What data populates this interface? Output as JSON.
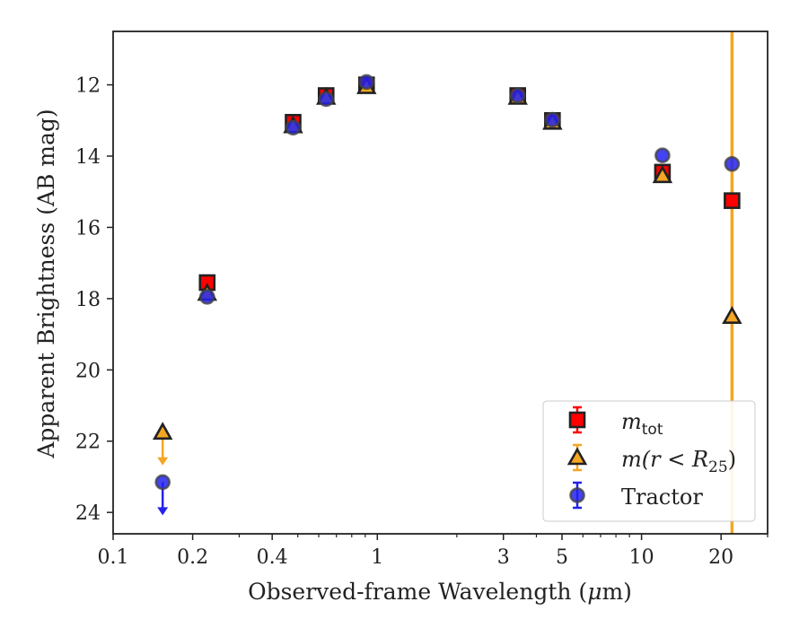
{
  "chart_data": {
    "type": "scatter",
    "xscale": "log",
    "yscale": "linear",
    "xlim": [
      0.1,
      30
    ],
    "ylim": [
      24.6,
      10.5
    ],
    "y_inverted": true,
    "xlabel_main": "Observed-frame Wavelength (",
    "xlabel_mu": "μ",
    "xlabel_end": "m)",
    "ylabel": "Apparent Brightness (AB mag)",
    "x_ticks": [
      {
        "value": 0.1,
        "label": "0.1"
      },
      {
        "value": 0.2,
        "label": "0.2"
      },
      {
        "value": 0.4,
        "label": "0.4"
      },
      {
        "value": 1,
        "label": "1"
      },
      {
        "value": 3,
        "label": "3"
      },
      {
        "value": 5,
        "label": "5"
      },
      {
        "value": 10,
        "label": "10"
      },
      {
        "value": 20,
        "label": "20"
      }
    ],
    "y_ticks": [
      {
        "value": 12,
        "label": "12"
      },
      {
        "value": 14,
        "label": "14"
      },
      {
        "value": 16,
        "label": "16"
      },
      {
        "value": 18,
        "label": "18"
      },
      {
        "value": 20,
        "label": "20"
      },
      {
        "value": 22,
        "label": "22"
      },
      {
        "value": 24,
        "label": "24"
      }
    ],
    "legend_position": "lower-right",
    "vertical_line": {
      "x": 22,
      "color": "#f5a623"
    },
    "series": [
      {
        "key": "mtot",
        "legend_main": "m",
        "legend_sub": "tot",
        "marker": "square",
        "color": "#ff0000",
        "edge": "#222222",
        "errcolor": "#ff0000",
        "points": [
          {
            "x": 0.227,
            "y": 17.55
          },
          {
            "x": 0.48,
            "y": 13.05
          },
          {
            "x": 0.64,
            "y": 12.3
          },
          {
            "x": 0.91,
            "y": 12.0
          },
          {
            "x": 3.4,
            "y": 12.3
          },
          {
            "x": 4.6,
            "y": 13.0
          },
          {
            "x": 12.0,
            "y": 14.45
          },
          {
            "x": 22.0,
            "y": 15.25
          }
        ]
      },
      {
        "key": "mr25",
        "legend_main": "m",
        "legend_paren_open": "(r < R",
        "legend_sub": "25",
        "legend_paren_close": ")",
        "marker": "triangle",
        "color": "#f5a623",
        "edge": "#222222",
        "errcolor": "#f5a623",
        "points": [
          {
            "x": 0.154,
            "y": 21.75,
            "upper_limit": true
          },
          {
            "x": 0.227,
            "y": 17.85
          },
          {
            "x": 0.48,
            "y": 13.15
          },
          {
            "x": 0.64,
            "y": 12.35
          },
          {
            "x": 0.91,
            "y": 12.05
          },
          {
            "x": 3.4,
            "y": 12.35
          },
          {
            "x": 4.6,
            "y": 13.05
          },
          {
            "x": 12.0,
            "y": 14.55
          },
          {
            "x": 22.0,
            "y": 18.5
          }
        ]
      },
      {
        "key": "tractor",
        "legend_label": "Tractor",
        "marker": "circle",
        "color": "#2222ee",
        "edge": "#444444",
        "errcolor": "#2222ee",
        "points": [
          {
            "x": 0.154,
            "y": 23.15,
            "upper_limit": true
          },
          {
            "x": 0.227,
            "y": 17.95
          },
          {
            "x": 0.48,
            "y": 13.2
          },
          {
            "x": 0.64,
            "y": 12.4
          },
          {
            "x": 0.91,
            "y": 11.92
          },
          {
            "x": 3.4,
            "y": 12.3
          },
          {
            "x": 4.6,
            "y": 12.98
          },
          {
            "x": 12.0,
            "y": 13.98
          },
          {
            "x": 22.0,
            "y": 14.22
          }
        ]
      }
    ]
  }
}
